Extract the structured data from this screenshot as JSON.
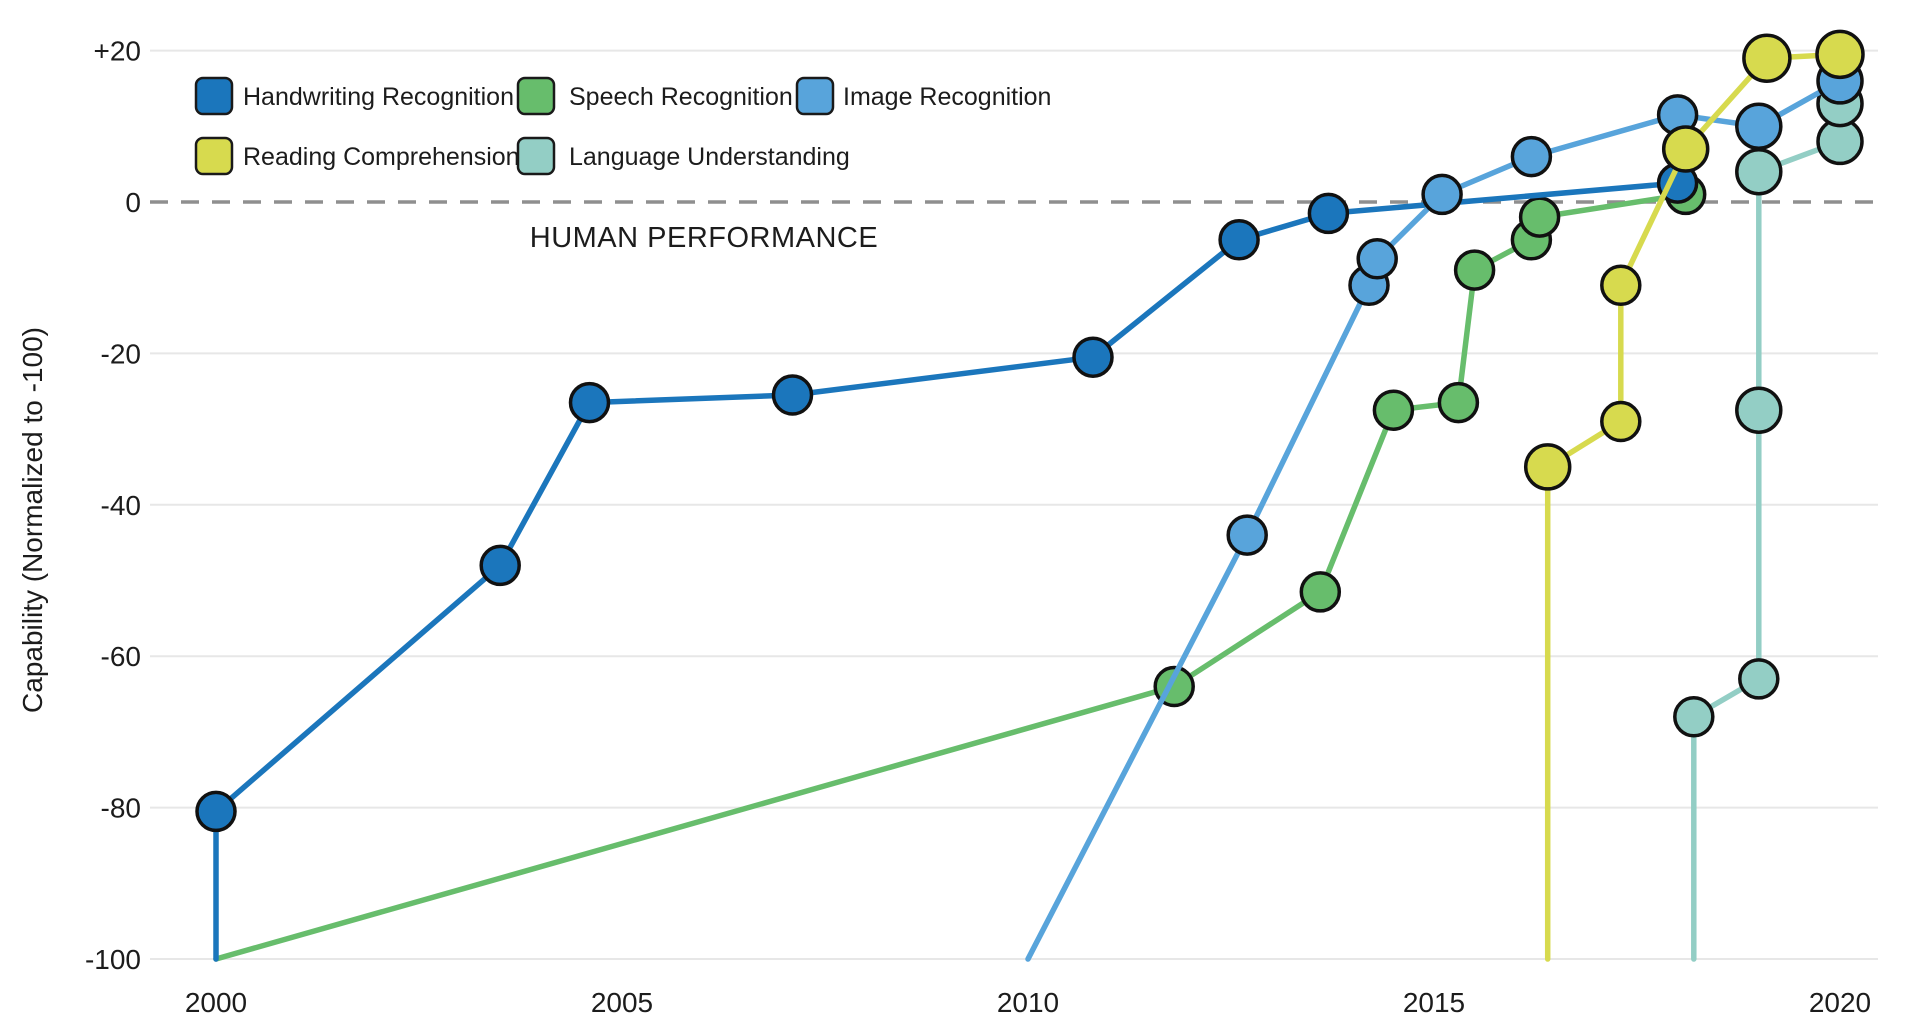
{
  "chart_data": {
    "type": "line",
    "title": "",
    "ylabel": "Capability (Normalized to -100)",
    "annotation": "HUMAN PERFORMANCE",
    "xlim": [
      1999.2,
      2020.6
    ],
    "ylim": [
      -100,
      20
    ],
    "grid": "horizontal-only",
    "legend_position": "top-left-inside",
    "human_performance_reference": 0,
    "x_ticks": [
      {
        "label": "2000",
        "value": 2000
      },
      {
        "label": "2005",
        "value": 2005
      },
      {
        "label": "2010",
        "value": 2010
      },
      {
        "label": "2015",
        "value": 2015
      },
      {
        "label": "2020",
        "value": 2020
      }
    ],
    "y_ticks": [
      {
        "label": "+20",
        "value": 20,
        "grid": "solid"
      },
      {
        "label": "0",
        "value": 0,
        "grid": "dashed"
      },
      {
        "label": "-20",
        "value": -20,
        "grid": "solid"
      },
      {
        "label": "-40",
        "value": -40,
        "grid": "solid"
      },
      {
        "label": "-60",
        "value": -60,
        "grid": "solid"
      },
      {
        "label": "-80",
        "value": -80,
        "grid": "solid"
      },
      {
        "label": "-100",
        "value": -100,
        "grid": "solid"
      }
    ],
    "series": [
      {
        "id": "speech",
        "name": "Speech Recognition",
        "color": "#67bd6c",
        "points": [
          {
            "x": 2000,
            "y": -100,
            "marker": false
          },
          {
            "x": 2011.8,
            "y": -64
          },
          {
            "x": 2013.6,
            "y": -51.5
          },
          {
            "x": 2014.5,
            "y": -27.5
          },
          {
            "x": 2015.3,
            "y": -26.5
          },
          {
            "x": 2015.5,
            "y": -9
          },
          {
            "x": 2016.2,
            "y": -5
          },
          {
            "x": 2016.3,
            "y": -2
          },
          {
            "x": 2018.1,
            "y": 1
          }
        ]
      },
      {
        "id": "language",
        "name": "Language Understanding",
        "color": "#93cec5",
        "points": [
          {
            "x": 2018.2,
            "y": -100,
            "marker": false
          },
          {
            "x": 2018.2,
            "y": -68
          },
          {
            "x": 2019,
            "y": -63
          },
          {
            "x": 2019,
            "y": -27.5,
            "r": 22
          },
          {
            "x": 2019,
            "y": 4,
            "r": 22
          },
          {
            "x": 2020,
            "y": 8,
            "r": 22
          },
          {
            "x": 2020,
            "y": 13,
            "r": 22
          }
        ]
      },
      {
        "id": "handwriting",
        "name": "Handwriting Recognition",
        "color": "#1b76bc",
        "points": [
          {
            "x": 2000,
            "y": -100,
            "marker": false
          },
          {
            "x": 2000,
            "y": -80.5
          },
          {
            "x": 2003.5,
            "y": -48
          },
          {
            "x": 2004.6,
            "y": -26.5
          },
          {
            "x": 2007.1,
            "y": -25.5
          },
          {
            "x": 2010.8,
            "y": -20.5
          },
          {
            "x": 2012.6,
            "y": -5
          },
          {
            "x": 2013.7,
            "y": -1.5
          },
          {
            "x": 2018,
            "y": 2.5
          }
        ]
      },
      {
        "id": "image",
        "name": "Image Recognition",
        "color": "#58a4db",
        "points": [
          {
            "x": 2010,
            "y": -100,
            "marker": false
          },
          {
            "x": 2012.7,
            "y": -44
          },
          {
            "x": 2014.2,
            "y": -11
          },
          {
            "x": 2014.3,
            "y": -7.5
          },
          {
            "x": 2015.1,
            "y": 1
          },
          {
            "x": 2016.2,
            "y": 6
          },
          {
            "x": 2018,
            "y": 11.5
          },
          {
            "x": 2019,
            "y": 10,
            "r": 22
          },
          {
            "x": 2020,
            "y": 16,
            "r": 22
          }
        ]
      },
      {
        "id": "reading",
        "name": "Reading Comprehension",
        "color": "#d7da4e",
        "points": [
          {
            "x": 2016.4,
            "y": -100,
            "marker": false
          },
          {
            "x": 2016.4,
            "y": -35,
            "r": 22
          },
          {
            "x": 2017.3,
            "y": -29
          },
          {
            "x": 2017.3,
            "y": -11
          },
          {
            "x": 2018.1,
            "y": 7,
            "r": 22
          },
          {
            "x": 2019.1,
            "y": 19,
            "r": 23
          },
          {
            "x": 2020,
            "y": 19.5,
            "r": 23
          }
        ]
      }
    ]
  },
  "legend": {
    "rows": [
      [
        {
          "series": "handwriting",
          "label": "Handwriting Recognition",
          "color": "#1b76bc"
        },
        {
          "series": "speech",
          "label": "Speech Recognition",
          "color": "#67bd6c"
        },
        {
          "series": "image",
          "label": "Image Recognition",
          "color": "#58a4db"
        }
      ],
      [
        {
          "series": "reading",
          "label": "Reading Comprehension",
          "color": "#d7da4e"
        },
        {
          "series": "language",
          "label": "Language Understanding",
          "color": "#93cec5"
        }
      ]
    ]
  },
  "colors": {
    "background": "#ffffff",
    "gridline": "#e7e7e7",
    "dashed_reference": "#8f8f8f",
    "marker_stroke": "#111111",
    "text": "#1c1c1c"
  }
}
